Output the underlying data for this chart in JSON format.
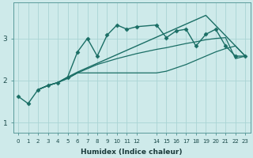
{
  "xlabel": "Humidex (Indice chaleur)",
  "bg_color": "#ceeaea",
  "line_color": "#1a6e65",
  "grid_color": "#aad4d4",
  "xlim": [
    -0.5,
    23.5
  ],
  "ylim": [
    0.75,
    3.85
  ],
  "yticks": [
    1,
    2,
    3
  ],
  "xtick_positions": [
    0,
    1,
    2,
    3,
    4,
    5,
    6,
    7,
    8,
    9,
    10,
    11,
    12,
    14,
    15,
    16,
    17,
    18,
    19,
    20,
    21,
    22,
    23
  ],
  "xtick_labels": [
    "0",
    "1",
    "2",
    "3",
    "4",
    "5",
    "6",
    "7",
    "8",
    "9",
    "10",
    "11",
    "12",
    "14",
    "15",
    "16",
    "17",
    "18",
    "19",
    "20",
    "21",
    "22",
    "23"
  ],
  "series": [
    {
      "x": [
        0,
        1,
        2,
        3,
        4,
        5,
        6,
        7,
        8,
        9,
        10,
        11,
        12,
        14,
        15,
        16,
        17,
        18,
        19,
        20,
        21,
        22,
        23
      ],
      "y": [
        1.62,
        1.45,
        1.78,
        1.88,
        1.95,
        2.08,
        2.68,
        3.0,
        2.58,
        3.08,
        3.32,
        3.22,
        3.28,
        3.32,
        3.02,
        3.18,
        3.22,
        2.82,
        3.1,
        3.22,
        2.82,
        2.58,
        2.58
      ],
      "marker": "D",
      "markersize": 2.5,
      "linewidth": 1.0
    },
    {
      "x": [
        2,
        3,
        4,
        5,
        6,
        19,
        23
      ],
      "y": [
        1.78,
        1.88,
        1.95,
        2.08,
        2.2,
        3.55,
        2.58
      ],
      "marker": null,
      "markersize": 0,
      "linewidth": 1.0
    },
    {
      "x": [
        2,
        3,
        4,
        5,
        6,
        7,
        8,
        9,
        10,
        11,
        12,
        14,
        15,
        16,
        17,
        18,
        19,
        20,
        21,
        22,
        23
      ],
      "y": [
        1.78,
        1.88,
        1.95,
        2.05,
        2.18,
        2.28,
        2.38,
        2.45,
        2.52,
        2.58,
        2.64,
        2.74,
        2.78,
        2.83,
        2.88,
        2.92,
        2.97,
        3.0,
        3.02,
        2.52,
        2.58
      ],
      "marker": null,
      "markersize": 0,
      "linewidth": 0.9
    },
    {
      "x": [
        2,
        3,
        4,
        5,
        6,
        14,
        15,
        16,
        17,
        18,
        19,
        20,
        21,
        22,
        23
      ],
      "y": [
        1.78,
        1.88,
        1.95,
        2.05,
        2.18,
        2.18,
        2.22,
        2.3,
        2.38,
        2.48,
        2.58,
        2.68,
        2.76,
        2.82,
        2.58
      ],
      "marker": null,
      "markersize": 0,
      "linewidth": 0.9
    }
  ]
}
